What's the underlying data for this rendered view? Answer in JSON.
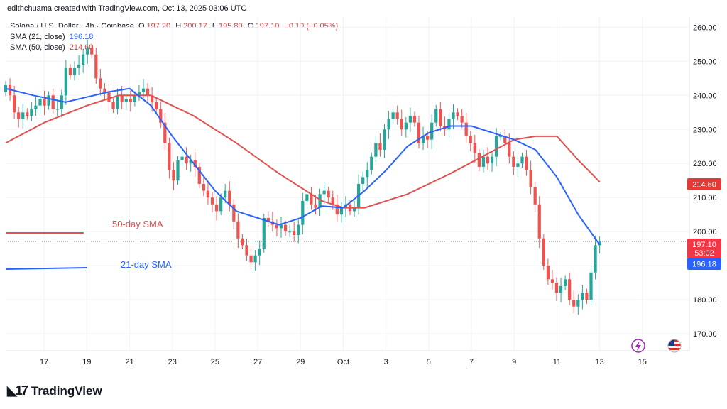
{
  "header": {
    "text": "edithchuama created with TradingView.com, Oct 13, 2025 03:06 UTC"
  },
  "legend": {
    "symbol": "Solana / U.S. Dollar · 4h · Coinbase",
    "ohlc": {
      "o_label": "O",
      "o": "197.20",
      "h_label": "H",
      "h": "200.17",
      "l_label": "L",
      "l": "195.80",
      "c_label": "C",
      "c": "197.10",
      "change": "−0.10 (−0.05%)"
    },
    "sma21": {
      "label": "SMA (21, close)",
      "value": "196.18"
    },
    "sma50": {
      "label": "SMA (50, close)",
      "value": "214.60"
    }
  },
  "annotations": {
    "sma50_text": "50-day SMA",
    "sma21_text": "21-day SMA"
  },
  "price_badges": {
    "last_price": "197.10",
    "countdown": "53:02",
    "sma21": "196.18",
    "sma50": "214.60"
  },
  "logo": {
    "text": "TradingView"
  },
  "colors": {
    "up": "#26a69a",
    "down": "#ef5350",
    "sma21": "#2962ff",
    "sma50": "#e53935",
    "badge_dark": "#f23645"
  },
  "chart_data": {
    "type": "candlestick",
    "ylim": [
      165,
      263
    ],
    "y_ticks": [
      "260.00",
      "250.00",
      "240.00",
      "230.00",
      "220.00",
      "210.00",
      "200.00",
      "190.00",
      "180.00",
      "170.00"
    ],
    "y_tick_values": [
      260,
      250,
      240,
      230,
      220,
      210,
      200,
      190,
      180,
      170
    ],
    "x_ticks": [
      "17",
      "19",
      "21",
      "23",
      "25",
      "27",
      "29",
      "Oct",
      "3",
      "5",
      "7",
      "9",
      "11",
      "13",
      "15"
    ],
    "x_tick_days": [
      17,
      19,
      21,
      23,
      25,
      27,
      29,
      31,
      33,
      35,
      37,
      39,
      41,
      43,
      45
    ],
    "x_range_days": [
      15.2,
      47.0
    ],
    "last_candle_day": 43.0,
    "closes": [
      243,
      240,
      235,
      233,
      235,
      234,
      236,
      237,
      239,
      237,
      240,
      236,
      236,
      240,
      248,
      246,
      248,
      249,
      252,
      254,
      252,
      245,
      242,
      241,
      238,
      236,
      240,
      238,
      239,
      238,
      240,
      241,
      242,
      240,
      238,
      236,
      232,
      226,
      218,
      215,
      221,
      222,
      220,
      221,
      219,
      214,
      212,
      210,
      208,
      206,
      210,
      212,
      208,
      203,
      198,
      196,
      193,
      191,
      193,
      195,
      204,
      203,
      202,
      201,
      202,
      200,
      200,
      199,
      202,
      209,
      211,
      208,
      207,
      211,
      212,
      210,
      208,
      205,
      207,
      208,
      206,
      207,
      214,
      216,
      218,
      222,
      226,
      224,
      230,
      233,
      235,
      233,
      230,
      232,
      234,
      232,
      226,
      228,
      227,
      232,
      236,
      231,
      230,
      233,
      235,
      234,
      232,
      228,
      226,
      223,
      219,
      222,
      220,
      222,
      228,
      228,
      226,
      222,
      219,
      220,
      222,
      218,
      213,
      208,
      198,
      190,
      186,
      185,
      182,
      184,
      186,
      180,
      178,
      180,
      182,
      180,
      188,
      196,
      197
    ],
    "sma21": [
      {
        "d": 15.2,
        "v": 242
      },
      {
        "d": 16.5,
        "v": 240
      },
      {
        "d": 18,
        "v": 238
      },
      {
        "d": 19,
        "v": 239.5
      },
      {
        "d": 20,
        "v": 241
      },
      {
        "d": 21,
        "v": 242
      },
      {
        "d": 22,
        "v": 237
      },
      {
        "d": 23,
        "v": 228
      },
      {
        "d": 24,
        "v": 220
      },
      {
        "d": 25,
        "v": 212
      },
      {
        "d": 26,
        "v": 206
      },
      {
        "d": 27,
        "v": 204
      },
      {
        "d": 28,
        "v": 202
      },
      {
        "d": 29,
        "v": 204
      },
      {
        "d": 30,
        "v": 207.5
      },
      {
        "d": 31,
        "v": 207
      },
      {
        "d": 32,
        "v": 212
      },
      {
        "d": 33,
        "v": 218
      },
      {
        "d": 34,
        "v": 225
      },
      {
        "d": 35,
        "v": 229
      },
      {
        "d": 36,
        "v": 231
      },
      {
        "d": 37,
        "v": 231
      },
      {
        "d": 38,
        "v": 229
      },
      {
        "d": 39,
        "v": 227
      },
      {
        "d": 40,
        "v": 224
      },
      {
        "d": 41,
        "v": 216
      },
      {
        "d": 42,
        "v": 205
      },
      {
        "d": 43,
        "v": 196.18
      }
    ],
    "sma50": [
      {
        "d": 15.2,
        "v": 226
      },
      {
        "d": 17,
        "v": 232
      },
      {
        "d": 19,
        "v": 237
      },
      {
        "d": 20.5,
        "v": 240
      },
      {
        "d": 22,
        "v": 240
      },
      {
        "d": 24,
        "v": 234
      },
      {
        "d": 26,
        "v": 226
      },
      {
        "d": 28,
        "v": 217
      },
      {
        "d": 30,
        "v": 209
      },
      {
        "d": 31,
        "v": 207
      },
      {
        "d": 32,
        "v": 207
      },
      {
        "d": 34,
        "v": 211
      },
      {
        "d": 36,
        "v": 217
      },
      {
        "d": 37.5,
        "v": 222
      },
      {
        "d": 39,
        "v": 227
      },
      {
        "d": 40,
        "v": 228
      },
      {
        "d": 41,
        "v": 228
      },
      {
        "d": 42,
        "v": 221
      },
      {
        "d": 43,
        "v": 214.6
      }
    ]
  }
}
